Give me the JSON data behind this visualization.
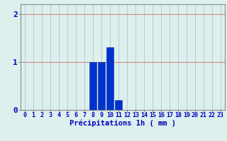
{
  "hours": [
    0,
    1,
    2,
    3,
    4,
    5,
    6,
    7,
    8,
    9,
    10,
    11,
    12,
    13,
    14,
    15,
    16,
    17,
    18,
    19,
    20,
    21,
    22,
    23
  ],
  "values": [
    0,
    0,
    0,
    0,
    0,
    0,
    0,
    0,
    1.0,
    1.0,
    1.3,
    0.2,
    0,
    0,
    0,
    0,
    0,
    0,
    0,
    0,
    0,
    0,
    0,
    0
  ],
  "bar_color": "#0033cc",
  "bar_edge_color": "#0022aa",
  "background_color": "#ddf0ee",
  "grid_color_h": "#cc8888",
  "grid_color_v": "#aacccc",
  "xlabel": "Précipitations 1h ( mm )",
  "xlabel_color": "#0000bb",
  "xlabel_fontsize": 7.5,
  "tick_color": "#0000bb",
  "tick_fontsize": 6,
  "ytick_fontsize": 8,
  "yticks": [
    0,
    1,
    2
  ],
  "ylim": [
    0,
    2.2
  ],
  "xlim": [
    -0.5,
    23.5
  ]
}
